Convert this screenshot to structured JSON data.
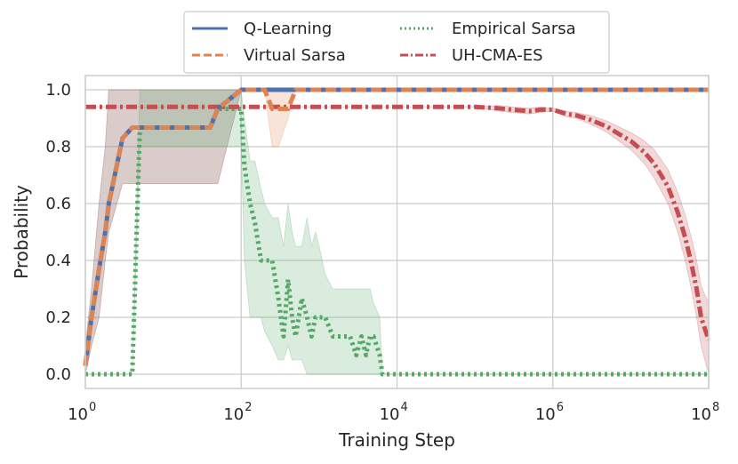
{
  "chart_data": {
    "type": "line",
    "xlabel": "Training Step",
    "ylabel": "Probability",
    "xscale": "log",
    "xlim": [
      1,
      100000000
    ],
    "ylim": [
      -0.05,
      1.05
    ],
    "grid": true,
    "legend_position": "top-center, outside plot",
    "x_ticks": [
      {
        "value": 1,
        "base": "10",
        "exp": "0"
      },
      {
        "value": 100,
        "base": "10",
        "exp": "2"
      },
      {
        "value": 10000,
        "base": "10",
        "exp": "4"
      },
      {
        "value": 1000000,
        "base": "10",
        "exp": "6"
      },
      {
        "value": 100000000,
        "base": "10",
        "exp": "8"
      }
    ],
    "y_ticks": [
      {
        "value": 0.0,
        "label": "0.0"
      },
      {
        "value": 0.2,
        "label": "0.2"
      },
      {
        "value": 0.4,
        "label": "0.4"
      },
      {
        "value": 0.6,
        "label": "0.6"
      },
      {
        "value": 0.8,
        "label": "0.8"
      },
      {
        "value": 1.0,
        "label": "1.0"
      }
    ],
    "series": [
      {
        "name": "Q-Learning",
        "color": "#4c72b0",
        "dash": "solid",
        "x": [
          1,
          1.2,
          1.5,
          1.8,
          2,
          3,
          4,
          5,
          10,
          20,
          30,
          40,
          50,
          100,
          200,
          1000,
          10000,
          100000000
        ],
        "y": [
          0.03,
          0.2,
          0.37,
          0.5,
          0.6,
          0.83,
          0.867,
          0.867,
          0.867,
          0.867,
          0.867,
          0.867,
          0.933,
          1.0,
          1.0,
          1.0,
          1.0,
          1.0
        ],
        "band_lower": [
          0.0,
          0.1,
          0.2,
          0.4,
          0.5,
          0.67,
          0.67,
          0.67,
          0.67,
          0.67,
          0.67,
          0.67,
          0.67,
          1.0,
          1.0,
          1.0,
          1.0,
          1.0
        ],
        "band_upper": [
          0.1,
          0.3,
          0.6,
          0.8,
          1.0,
          1.0,
          1.0,
          1.0,
          1.0,
          1.0,
          1.0,
          1.0,
          1.0,
          1.0,
          1.0,
          1.0,
          1.0,
          1.0
        ]
      },
      {
        "name": "Virtual Sarsa",
        "color": "#dd8452",
        "dash": "dashed",
        "x": [
          1,
          1.2,
          1.5,
          1.8,
          2,
          3,
          4,
          5,
          10,
          20,
          30,
          40,
          50,
          100,
          200,
          250,
          300,
          400,
          500,
          1000,
          10000,
          100000000
        ],
        "y": [
          0.03,
          0.2,
          0.37,
          0.5,
          0.6,
          0.83,
          0.867,
          0.867,
          0.867,
          0.867,
          0.867,
          0.867,
          0.933,
          1.0,
          1.0,
          0.933,
          0.933,
          0.933,
          1.0,
          1.0,
          1.0,
          1.0
        ],
        "band_lower": [
          0.0,
          0.1,
          0.2,
          0.4,
          0.5,
          0.67,
          0.67,
          0.67,
          0.67,
          0.67,
          0.67,
          0.67,
          0.67,
          1.0,
          1.0,
          0.8,
          0.8,
          0.9,
          1.0,
          1.0,
          1.0,
          1.0
        ],
        "band_upper": [
          0.1,
          0.3,
          0.6,
          0.8,
          1.0,
          1.0,
          1.0,
          1.0,
          1.0,
          1.0,
          1.0,
          1.0,
          1.0,
          1.0,
          1.0,
          1.0,
          1.0,
          1.0,
          1.0,
          1.0,
          1.0,
          1.0
        ]
      },
      {
        "name": "Empirical Sarsa",
        "color": "#55a868",
        "dash": "dotted",
        "x": [
          1,
          2,
          4,
          5,
          10,
          20,
          40,
          50,
          100,
          110,
          130,
          150,
          180,
          200,
          250,
          300,
          350,
          400,
          450,
          500,
          600,
          700,
          800,
          900,
          1000,
          1200,
          1500,
          2000,
          2500,
          3000,
          3500,
          4000,
          4500,
          5000,
          6000,
          6500,
          10000,
          100000,
          1000000,
          10000000,
          100000000
        ],
        "y": [
          0.0,
          0.0,
          0.0,
          0.867,
          0.867,
          0.867,
          0.867,
          0.933,
          0.933,
          0.733,
          0.6,
          0.533,
          0.4,
          0.4,
          0.4,
          0.267,
          0.133,
          0.333,
          0.2,
          0.133,
          0.267,
          0.2,
          0.133,
          0.2,
          0.2,
          0.2,
          0.133,
          0.133,
          0.133,
          0.067,
          0.133,
          0.067,
          0.133,
          0.133,
          0.067,
          0.0,
          0.0,
          0.0,
          0.0,
          0.0,
          0.0
        ],
        "band_lower": [
          0.0,
          0.0,
          0.0,
          0.8,
          0.8,
          0.8,
          0.8,
          0.8,
          0.8,
          0.4,
          0.2,
          0.2,
          0.2,
          0.15,
          0.1,
          0.05,
          0.05,
          0.1,
          0.05,
          0.05,
          0.05,
          0.0,
          0.0,
          0.0,
          0.0,
          0.0,
          0.0,
          0.0,
          0.0,
          0.0,
          0.0,
          0.0,
          0.0,
          0.0,
          0.0,
          0.0,
          0.0,
          0.0,
          0.0,
          0.0,
          0.0
        ],
        "band_upper": [
          0.0,
          0.0,
          0.0,
          1.0,
          1.0,
          1.0,
          1.0,
          1.0,
          1.0,
          0.9,
          0.75,
          0.75,
          0.65,
          0.6,
          0.55,
          0.55,
          0.45,
          0.6,
          0.5,
          0.45,
          0.45,
          0.55,
          0.45,
          0.5,
          0.45,
          0.35,
          0.3,
          0.3,
          0.3,
          0.3,
          0.3,
          0.3,
          0.3,
          0.25,
          0.2,
          0.0,
          0.0,
          0.0,
          0.0,
          0.0,
          0.0
        ]
      },
      {
        "name": "UH-CMA-ES",
        "color": "#c44e52",
        "dash": "dashdot",
        "x": [
          1,
          10,
          100,
          1000,
          10000,
          100000,
          200000,
          300000,
          500000,
          700000,
          1000000,
          1500000,
          2000000,
          3000000,
          5000000,
          7000000,
          10000000,
          15000000,
          20000000,
          30000000,
          40000000,
          50000000,
          60000000,
          70000000,
          80000000,
          100000000
        ],
        "y": [
          0.94,
          0.94,
          0.94,
          0.94,
          0.94,
          0.94,
          0.935,
          0.93,
          0.925,
          0.93,
          0.93,
          0.915,
          0.91,
          0.895,
          0.87,
          0.845,
          0.82,
          0.78,
          0.74,
          0.66,
          0.57,
          0.48,
          0.39,
          0.3,
          0.2,
          0.12
        ],
        "band_lower": [
          0.94,
          0.94,
          0.94,
          0.94,
          0.94,
          0.94,
          0.925,
          0.92,
          0.915,
          0.92,
          0.925,
          0.905,
          0.9,
          0.88,
          0.85,
          0.82,
          0.79,
          0.74,
          0.69,
          0.6,
          0.5,
          0.4,
          0.3,
          0.2,
          0.1,
          0.0
        ],
        "band_upper": [
          0.94,
          0.94,
          0.94,
          0.94,
          0.94,
          0.94,
          0.945,
          0.94,
          0.935,
          0.94,
          0.935,
          0.925,
          0.92,
          0.91,
          0.89,
          0.87,
          0.85,
          0.82,
          0.79,
          0.72,
          0.64,
          0.56,
          0.48,
          0.4,
          0.31,
          0.25
        ]
      }
    ]
  }
}
